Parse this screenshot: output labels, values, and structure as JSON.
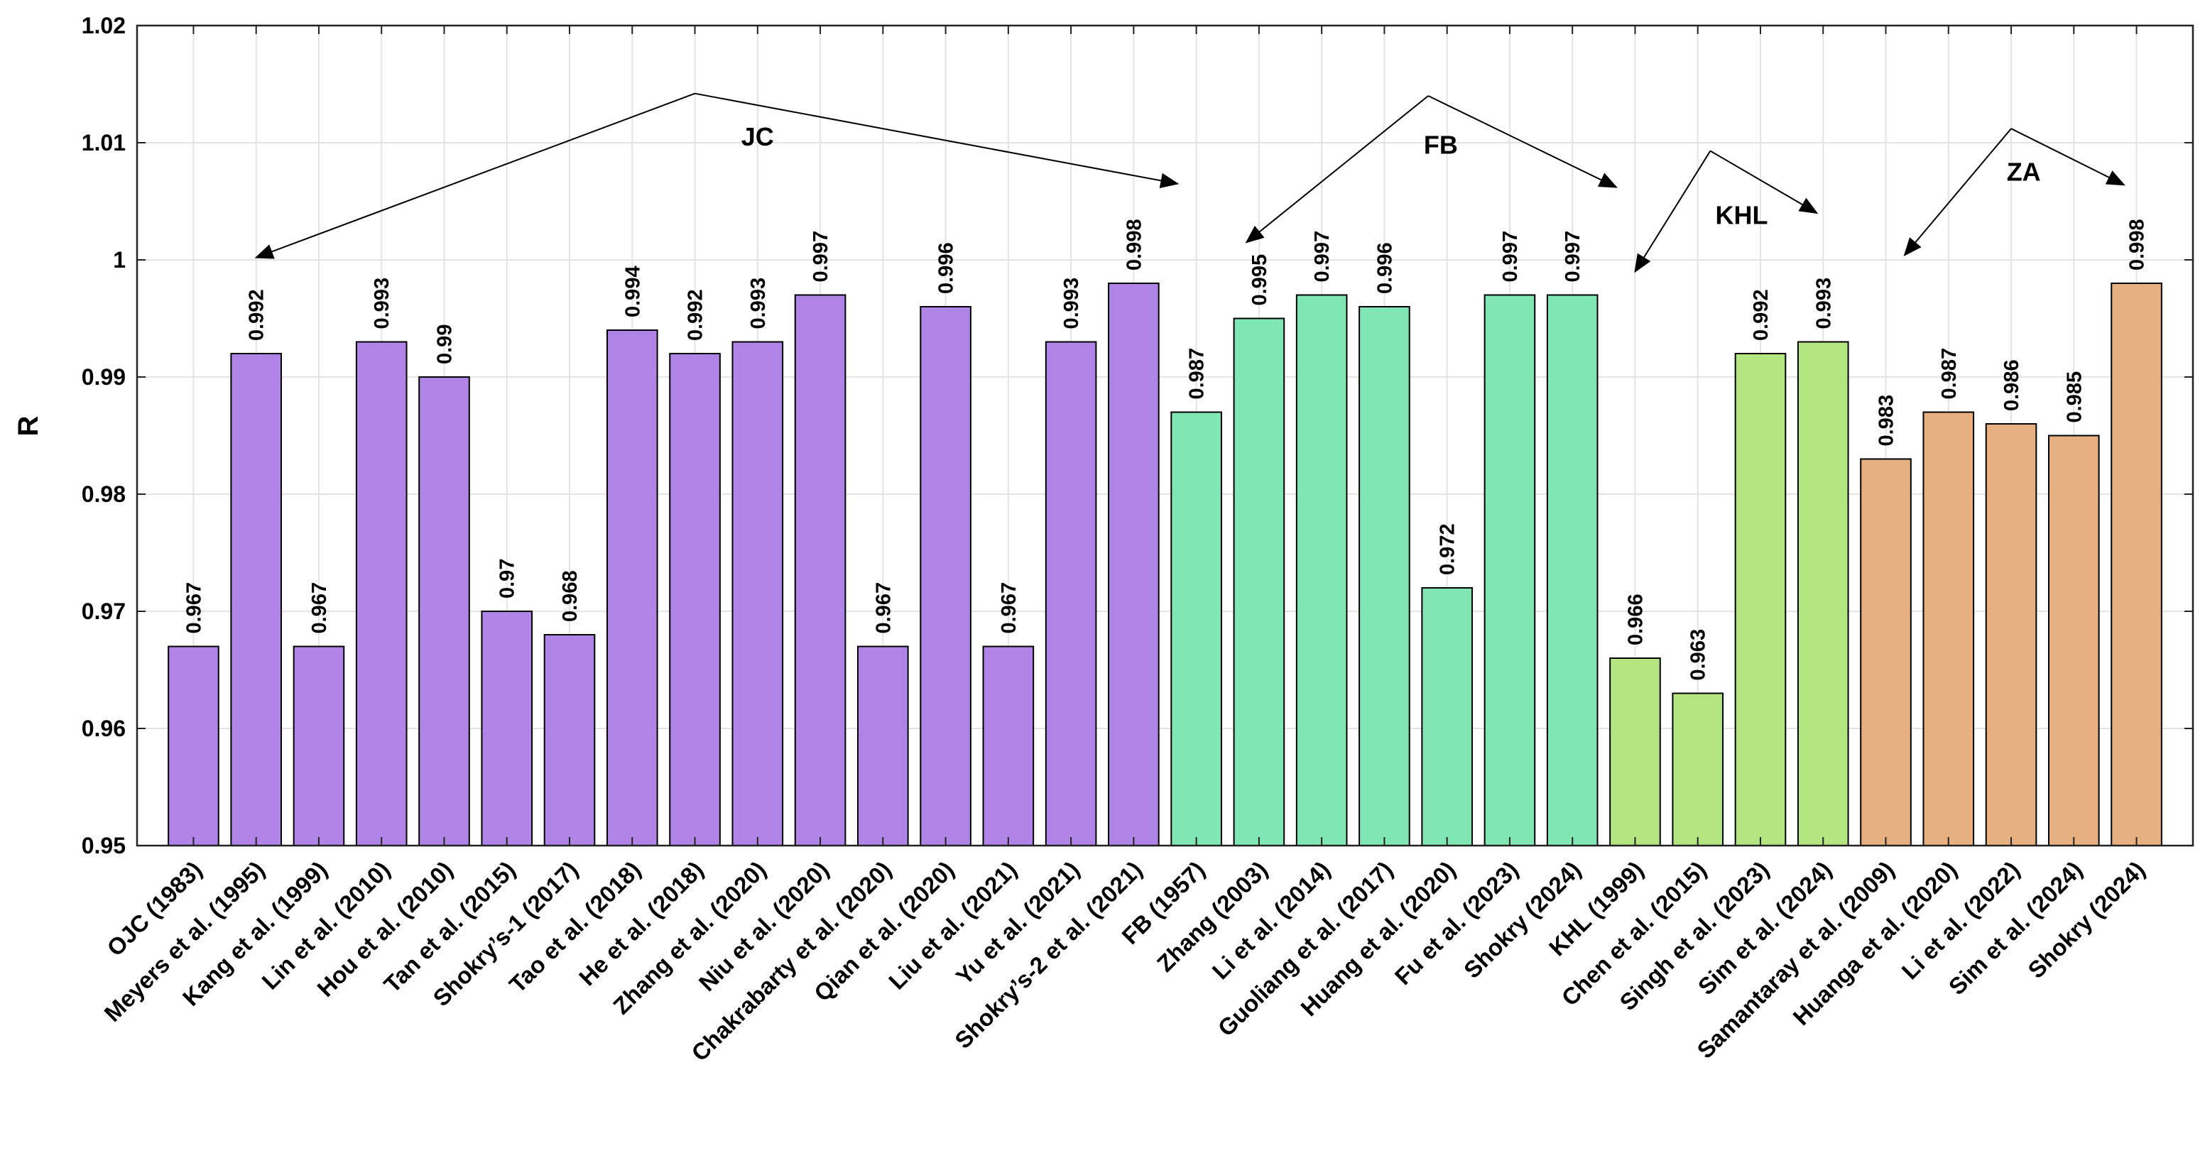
{
  "chart_data": {
    "type": "bar",
    "title": "",
    "xlabel": "",
    "ylabel": "R",
    "ylim": [
      0.95,
      1.02
    ],
    "yticks": [
      0.95,
      0.96,
      0.97,
      0.98,
      0.99,
      1,
      1.01,
      1.02
    ],
    "ytick_labels": [
      "0.95",
      "0.96",
      "0.97",
      "0.98",
      "0.99",
      "1",
      "1.01",
      "1.02"
    ],
    "grid": true,
    "categories": [
      "OJC (1983)",
      "Meyers et al. (1995)",
      "Kang et al. (1999)",
      "Lin et al. (2010)",
      "Hou et al. (2010)",
      "Tan et al. (2015)",
      "Shokry’s-1 (2017)",
      "Tao et al. (2018)",
      "He et al. (2018)",
      "Zhang et al. (2020)",
      "Niu et al. (2020)",
      "Chakrabarty et al. (2020)",
      "Qian et al. (2020)",
      "Liu et al. (2021)",
      "Yu et al. (2021)",
      "Shokry’s-2 et al. (2021)",
      "FB (1957)",
      "Zhang (2003)",
      "Li et al. (2014)",
      "Guoliang et al. (2017)",
      "Huang et al. (2020)",
      "Fu et al. (2023)",
      "Shokry (2024)",
      "KHL (1999)",
      "Chen et al. (2015)",
      "Singh et al. (2023)",
      "Sim et al. (2024)",
      "Samantaray et al. (2009)",
      "Huanga et al. (2020)",
      "Li et al. (2022)",
      "Sim et al. (2024)",
      "Shokry (2024)"
    ],
    "values": [
      0.967,
      0.992,
      0.967,
      0.993,
      0.99,
      0.97,
      0.968,
      0.994,
      0.992,
      0.993,
      0.997,
      0.967,
      0.996,
      0.967,
      0.993,
      0.998,
      0.987,
      0.995,
      0.997,
      0.996,
      0.972,
      0.997,
      0.997,
      0.966,
      0.963,
      0.992,
      0.993,
      0.983,
      0.987,
      0.986,
      0.985,
      0.998
    ],
    "value_labels": [
      "0.967",
      "0.992",
      "0.967",
      "0.993",
      "0.99",
      "0.97",
      "0.968",
      "0.994",
      "0.992",
      "0.993",
      "0.997",
      "0.967",
      "0.996",
      "0.967",
      "0.993",
      "0.998",
      "0.987",
      "0.995",
      "0.997",
      "0.996",
      "0.972",
      "0.997",
      "0.997",
      "0.966",
      "0.963",
      "0.992",
      "0.993",
      "0.983",
      "0.987",
      "0.986",
      "0.985",
      "0.998"
    ],
    "groups": [
      {
        "name": "JC",
        "color": "#b083e6",
        "start": 0,
        "end": 15,
        "label_pos": [
          9,
          1.0105
        ],
        "apex": [
          8,
          1.0142
        ],
        "arrow_targets": [
          [
            1,
            1.0002
          ],
          [
            15.7,
            1.0065
          ]
        ]
      },
      {
        "name": "FB",
        "color": "#80e6b3",
        "start": 16,
        "end": 22,
        "label_pos": [
          19.9,
          1.0098
        ],
        "apex": [
          19.7,
          1.014
        ],
        "arrow_targets": [
          [
            16.8,
            1.0015
          ],
          [
            22.7,
            1.0062
          ]
        ]
      },
      {
        "name": "KHL",
        "color": "#b3e680",
        "start": 23,
        "end": 26,
        "label_pos": [
          24.7,
          1.0038
        ],
        "apex": [
          24.2,
          1.0093
        ],
        "arrow_targets": [
          [
            23,
            0.999
          ],
          [
            25.9,
            1.004
          ]
        ]
      },
      {
        "name": "ZA",
        "color": "#e6b080",
        "start": 27,
        "end": 31,
        "label_pos": [
          29.2,
          1.0075
        ],
        "apex": [
          29.0,
          1.0112
        ],
        "arrow_targets": [
          [
            27.3,
            1.0004
          ],
          [
            30.8,
            1.0064
          ]
        ]
      }
    ]
  }
}
